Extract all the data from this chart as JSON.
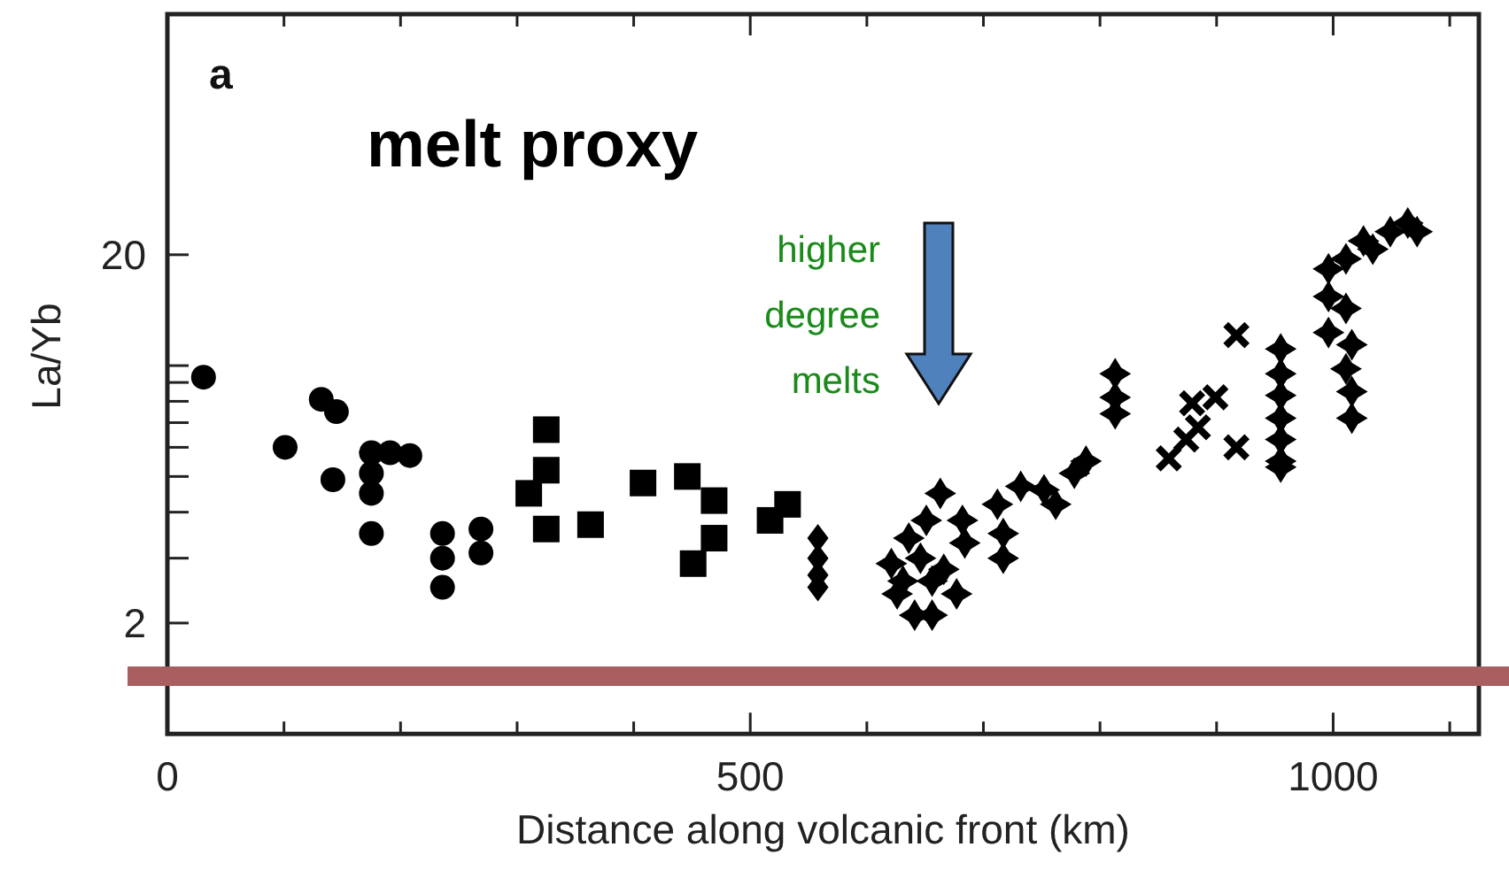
{
  "chart_data": {
    "type": "scatter",
    "xlabel": "Distance along volcanic front (km)",
    "ylabel": "La/Yb",
    "log": "y",
    "xlim": [
      0,
      1125
    ],
    "ylim": [
      1,
      90
    ],
    "xticks": [
      0,
      {
        "value": 100,
        "label": null
      },
      {
        "value": 200,
        "label": null
      },
      {
        "value": 300,
        "label": null
      },
      {
        "value": 400,
        "label": null
      },
      500,
      {
        "value": 600,
        "label": null
      },
      {
        "value": 700,
        "label": null
      },
      {
        "value": 800,
        "label": null
      },
      {
        "value": 900,
        "label": null
      },
      1000,
      {
        "value": 1100,
        "label": null
      }
    ],
    "yticks": [
      2,
      {
        "value": 3,
        "label": null
      },
      {
        "value": 4,
        "label": null
      },
      {
        "value": 5,
        "label": null
      },
      {
        "value": 6,
        "label": null
      },
      {
        "value": 7,
        "label": null
      },
      {
        "value": 8,
        "label": null
      },
      {
        "value": 9,
        "label": null
      },
      {
        "value": 10,
        "label": null
      },
      20
    ],
    "annotations": [
      "a",
      "melt proxy",
      "higher degree melts"
    ],
    "series": [
      {
        "marker": "circle",
        "color": "#000000",
        "x": [
          31,
          101,
          132,
          145,
          142,
          175,
          175,
          175,
          175,
          191,
          208,
          236,
          236,
          236,
          269,
          269
        ],
        "values": [
          9.3,
          6.0,
          8.1,
          7.5,
          4.9,
          5.8,
          5.1,
          4.5,
          3.5,
          5.8,
          5.7,
          3.5,
          3.0,
          2.5,
          3.6,
          3.1
        ]
      },
      {
        "marker": "square",
        "color": "#000000",
        "x": [
          325,
          310,
          325,
          325,
          363,
          408,
          446,
          469,
          469,
          451,
          517,
          532
        ],
        "values": [
          6.7,
          4.5,
          5.2,
          3.6,
          3.7,
          4.8,
          5.0,
          4.3,
          3.4,
          2.9,
          3.8,
          4.2
        ]
      },
      {
        "marker": "diamond",
        "color": "#000000",
        "x": [
          558,
          558,
          558,
          558
        ],
        "values": [
          3.4,
          3.0,
          2.7,
          2.5
        ]
      },
      {
        "marker": "star",
        "color": "#000000",
        "x": [
          621,
          626,
          641,
          656,
          636,
          651,
          663,
          666,
          656,
          682,
          684,
          677,
          631,
          646,
          712,
          717,
          717,
          732,
          752,
          762,
          778,
          788,
          813,
          813,
          813,
          955,
          955,
          955,
          955,
          955,
          955,
          955,
          996,
          1011,
          996,
          1016,
          1011,
          1016,
          1016,
          1034,
          1049,
          1064,
          1011,
          996,
          1026,
          1072
        ],
        "values": [
          2.9,
          2.4,
          2.1,
          2.1,
          3.4,
          3.8,
          4.5,
          2.8,
          2.6,
          3.8,
          3.3,
          2.4,
          2.6,
          3.0,
          4.2,
          3.5,
          3.0,
          4.7,
          4.6,
          4.2,
          5.1,
          5.5,
          9.5,
          7.4,
          8.2,
          11.1,
          9.5,
          8.3,
          7.2,
          6.3,
          5.5,
          5.3,
          15.4,
          14.3,
          12.3,
          11.4,
          9.8,
          8.5,
          7.2,
          20.7,
          23.1,
          24.4,
          19.5,
          18.3,
          21.8,
          23.1
        ]
      },
      {
        "marker": "cross",
        "color": "#000000",
        "x": [
          917,
          859,
          874,
          879,
          899,
          884,
          917
        ],
        "values": [
          12.1,
          5.6,
          6.3,
          7.9,
          8.2,
          6.8,
          6.0
        ]
      }
    ]
  }
}
